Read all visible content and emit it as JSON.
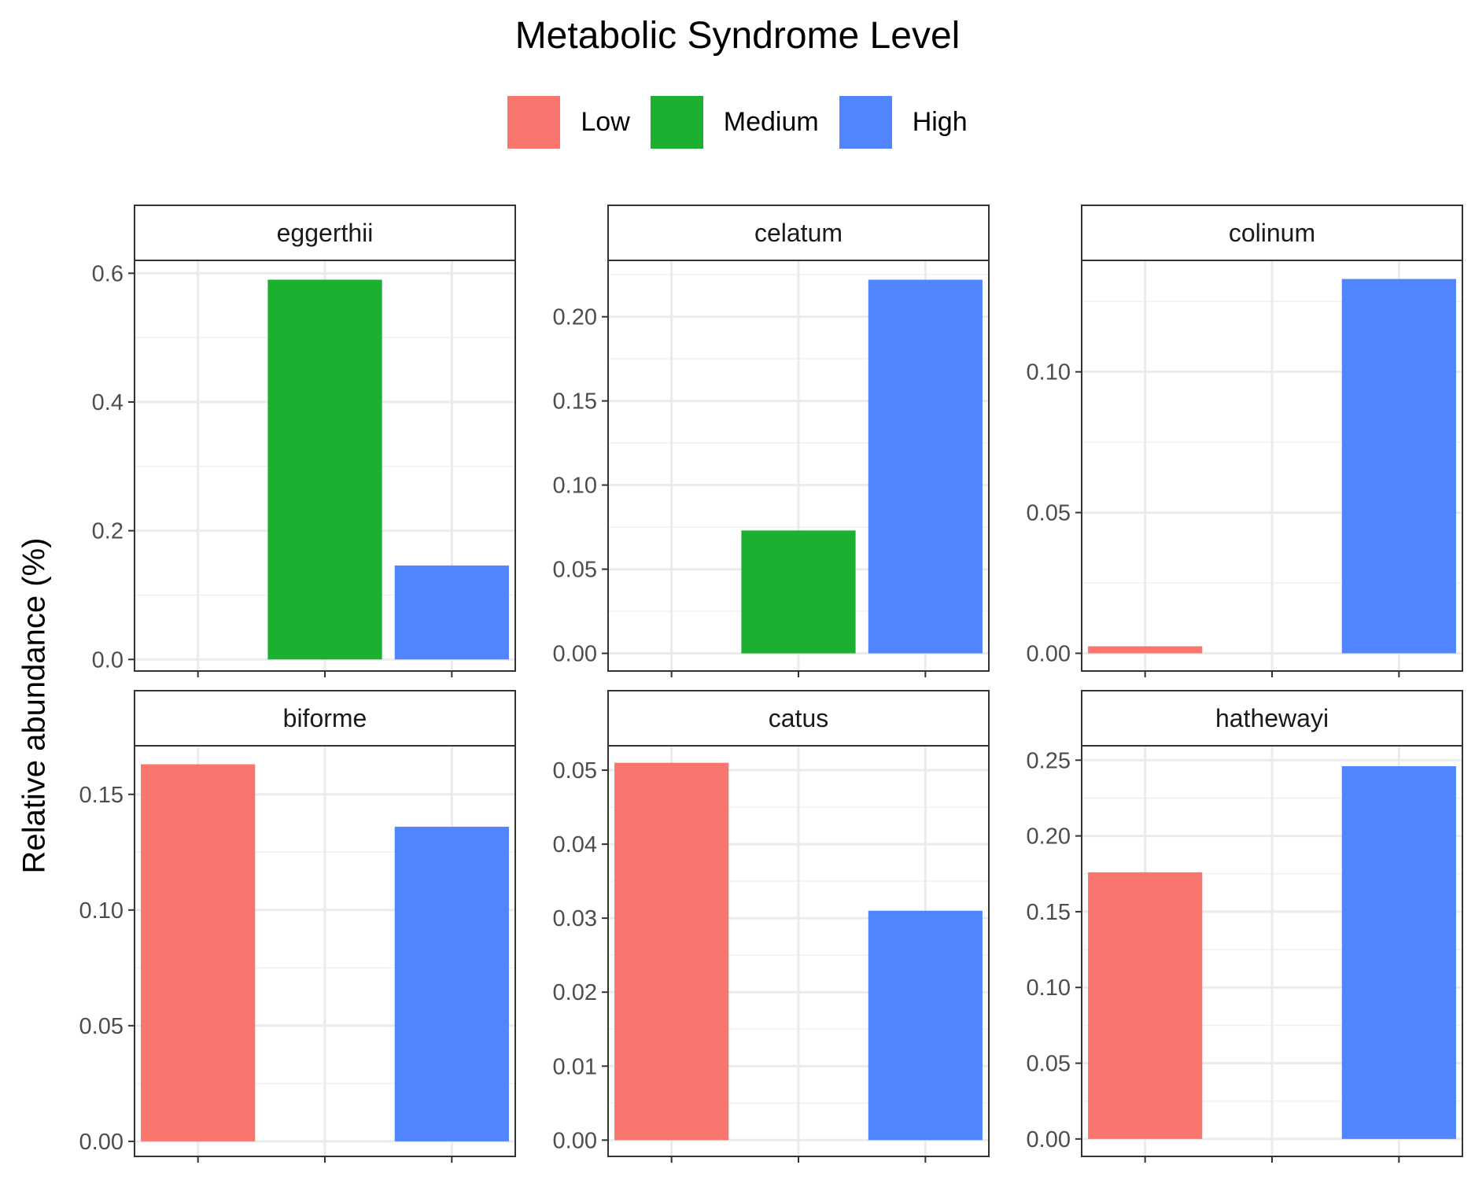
{
  "chart_data": {
    "type": "bar",
    "facet_layout": "3 columns x 2 rows, free y scales",
    "legend": {
      "title": "Metabolic Syndrome Level",
      "position": "top",
      "entries": [
        {
          "label": "Low",
          "color": "#F8766D"
        },
        {
          "label": "Medium",
          "color": "#1BB02F"
        },
        {
          "label": "High",
          "color": "#5185FF"
        }
      ]
    },
    "xlabel": "",
    "ylabel": "Relative abundance (%)",
    "categories": [
      "Low",
      "Medium",
      "High"
    ],
    "grid": true,
    "facets": [
      {
        "title": "eggerthii",
        "ylim": [
          -0.018,
          0.62
        ],
        "yticks": [
          "0.0",
          "0.2",
          "0.4",
          "0.6"
        ],
        "bars": [
          {
            "category": "Medium",
            "value": 0.59
          },
          {
            "category": "High",
            "value": 0.146
          }
        ]
      },
      {
        "title": "celatum",
        "ylim": [
          -0.0105,
          0.2335
        ],
        "yticks": [
          "0.00",
          "0.05",
          "0.10",
          "0.15",
          "0.20"
        ],
        "bars": [
          {
            "category": "Medium",
            "value": 0.073
          },
          {
            "category": "High",
            "value": 0.222
          }
        ]
      },
      {
        "title": "colinum",
        "ylim": [
          -0.0063,
          0.1396
        ],
        "yticks": [
          "0.00",
          "0.05",
          "0.10"
        ],
        "bars": [
          {
            "category": "Low",
            "value": 0.0025
          },
          {
            "category": "High",
            "value": 0.133
          }
        ]
      },
      {
        "title": "biforme",
        "ylim": [
          -0.0065,
          0.171
        ],
        "yticks": [
          "0.00",
          "0.05",
          "0.10",
          "0.15"
        ],
        "bars": [
          {
            "category": "Low",
            "value": 0.163
          },
          {
            "category": "High",
            "value": 0.136
          }
        ]
      },
      {
        "title": "catus",
        "ylim": [
          -0.0022,
          0.0533
        ],
        "yticks": [
          "0.00",
          "0.01",
          "0.02",
          "0.03",
          "0.04",
          "0.05"
        ],
        "bars": [
          {
            "category": "Low",
            "value": 0.051
          },
          {
            "category": "High",
            "value": 0.031
          }
        ]
      },
      {
        "title": "hathewayi",
        "ylim": [
          -0.0115,
          0.2595
        ],
        "yticks": [
          "0.00",
          "0.05",
          "0.10",
          "0.15",
          "0.20",
          "0.25"
        ],
        "bars": [
          {
            "category": "Low",
            "value": 0.176
          },
          {
            "category": "High",
            "value": 0.246
          }
        ]
      }
    ]
  }
}
